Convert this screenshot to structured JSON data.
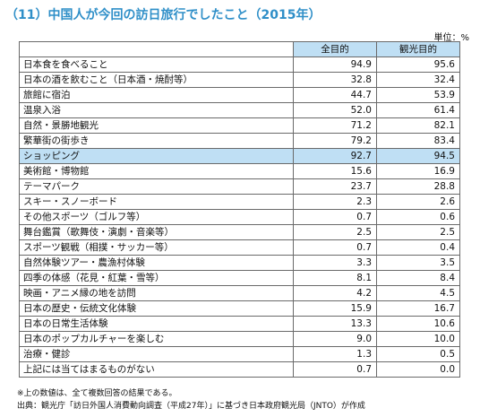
{
  "title": "（11）中国人が今回の訪日旅行でしたこと（2015年）",
  "unit": "単位：%",
  "table": {
    "headers": [
      "",
      "全目的",
      "観光目的"
    ],
    "rows": [
      {
        "label": "日本食を食べること",
        "all": "94.9",
        "tour": "95.6"
      },
      {
        "label": "日本の酒を飲むこと（日本酒・焼酎等）",
        "all": "32.8",
        "tour": "32.4"
      },
      {
        "label": "旅館に宿泊",
        "all": "44.7",
        "tour": "53.9"
      },
      {
        "label": "温泉入浴",
        "all": "52.0",
        "tour": "61.4"
      },
      {
        "label": "自然・景勝地観光",
        "all": "71.2",
        "tour": "82.1"
      },
      {
        "label": "繁華街の街歩き",
        "all": "79.2",
        "tour": "83.4"
      },
      {
        "label": "ショッピング",
        "all": "92.7",
        "tour": "94.5"
      },
      {
        "label": "美術館・博物館",
        "all": "15.6",
        "tour": "16.9"
      },
      {
        "label": "テーマパーク",
        "all": "23.7",
        "tour": "28.8"
      },
      {
        "label": "スキー・スノーボード",
        "all": "2.3",
        "tour": "2.6"
      },
      {
        "label": "その他スポーツ（ゴルフ等）",
        "all": "0.7",
        "tour": "0.6"
      },
      {
        "label": "舞台鑑賞（歌舞伎・演劇・音楽等）",
        "all": "2.5",
        "tour": "2.5"
      },
      {
        "label": "スポーツ観戦（相撲・サッカー等）",
        "all": "0.7",
        "tour": "0.4"
      },
      {
        "label": "自然体験ツアー・農漁村体験",
        "all": "3.3",
        "tour": "3.5"
      },
      {
        "label": "四季の体感（花見・紅葉・雪等）",
        "all": "8.1",
        "tour": "8.4"
      },
      {
        "label": "映画・アニメ縁の地を訪問",
        "all": "4.2",
        "tour": "4.5"
      },
      {
        "label": "日本の歴史・伝統文化体験",
        "all": "15.9",
        "tour": "16.7"
      },
      {
        "label": "日本の日常生活体験",
        "all": "13.3",
        "tour": "10.6"
      },
      {
        "label": "日本のポップカルチャーを楽しむ",
        "all": "9.0",
        "tour": "10.0"
      },
      {
        "label": "治療・健診",
        "all": "1.3",
        "tour": "0.5"
      },
      {
        "label": "上記には当てはまるものがない",
        "all": "0.7",
        "tour": "0.0"
      }
    ]
  },
  "notes": [
    "※上の数値は、全て複数回答の結果である。",
    "出典：観光庁「訪日外国人消費動向調査（平成27年）」に基づき日本政府観光局（JNTO）が作成"
  ],
  "colors": {
    "title": "#2f8fc8",
    "header_bg": "#bfdff4",
    "highlight_bg": "#bfdff4",
    "border": "#6a6a6a"
  }
}
